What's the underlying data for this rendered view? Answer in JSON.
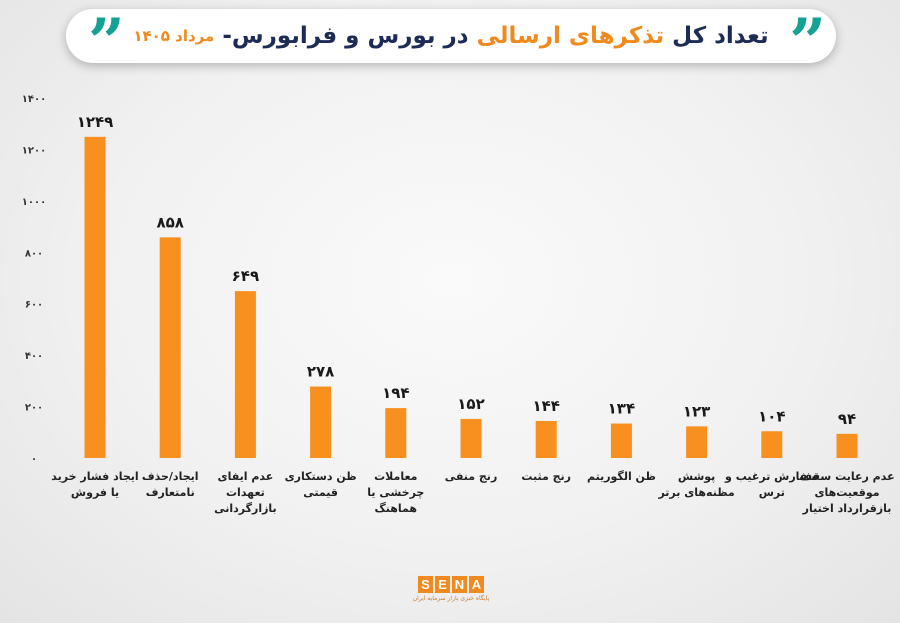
{
  "header": {
    "title_part1": "تعداد کل",
    "title_accent": "تذکرهای ارسالی",
    "title_part2": "در بورس و فرابورس-",
    "subtitle": "مرداد ۱۴۰۵",
    "quote_glyph": "”"
  },
  "colors": {
    "bar": "#f7901e",
    "accent": "#f08a1e",
    "navy": "#1d2b57",
    "teal": "#16a195"
  },
  "chart_data": {
    "type": "bar",
    "title": "تعداد کل تذکرهای ارسالی در بورس و فرابورس- مرداد ۱۴۰۵",
    "xlabel": "",
    "ylabel": "",
    "ylim": [
      0,
      1400
    ],
    "yticks": [
      0,
      200,
      400,
      600,
      800,
      1000,
      1200,
      1400
    ],
    "ytick_labels": [
      "۰",
      "۲۰۰",
      "۴۰۰",
      "۶۰۰",
      "۸۰۰",
      "۱۰۰۰",
      "۱۲۰۰",
      "۱۴۰۰"
    ],
    "grid": false,
    "categories": [
      [
        "ایجاد فشار خرید",
        "یا فروش"
      ],
      [
        "ایجاد/حذف",
        "نامتعارف"
      ],
      [
        "عدم ایفای",
        "تعهدات",
        "بازارگردانی"
      ],
      [
        "ظن دستکاری",
        "قیمتی"
      ],
      [
        "معاملات",
        "چرخشی یا",
        "هماهنگ"
      ],
      [
        "رنج منفی"
      ],
      [
        "رنج مثبت"
      ],
      [
        "ظن الگوریتم"
      ],
      [
        "پوشش",
        "مظنه‌های برتر"
      ],
      [
        "سفارش ترغیب و",
        "ترس"
      ],
      [
        "عدم رعایت سقف",
        "موقعیت‌های",
        "بازقرارداد اختیار"
      ]
    ],
    "values": [
      1249,
      858,
      649,
      278,
      194,
      152,
      144,
      134,
      123,
      104,
      94
    ],
    "value_labels": [
      "۱۲۴۹",
      "۸۵۸",
      "۶۴۹",
      "۲۷۸",
      "۱۹۴",
      "۱۵۲",
      "۱۴۴",
      "۱۳۴",
      "۱۲۳",
      "۱۰۴",
      "۹۴"
    ]
  },
  "logo": {
    "letters": [
      "S",
      "E",
      "N",
      "A"
    ],
    "tagline": "پایگاه خبری بازار سرمایه ایران"
  }
}
